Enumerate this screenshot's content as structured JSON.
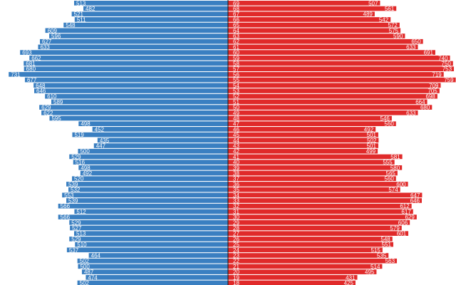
{
  "chart_data": {
    "type": "bar",
    "orientation": "horizontal",
    "layout": "population-pyramid",
    "categories": [
      "18",
      "19",
      "20",
      "21",
      "22",
      "23",
      "24",
      "25",
      "26",
      "27",
      "28",
      "29",
      "30",
      "31",
      "32",
      "33",
      "34",
      "35",
      "36",
      "37",
      "38",
      "39",
      "40",
      "41",
      "42",
      "43",
      "44",
      "45",
      "46",
      "47",
      "48",
      "49",
      "50",
      "51",
      "52",
      "53",
      "54",
      "55",
      "56",
      "57",
      "58",
      "59",
      "60",
      "61",
      "62",
      "63",
      "64",
      "65",
      "66",
      "67",
      "68",
      "69",
      "70",
      "71"
    ],
    "series": [
      {
        "side": "left",
        "color": "#3a7fc1",
        "values": [
          502,
          474,
          487,
          500,
          502,
          464,
          537,
          510,
          529,
          513,
          527,
          529,
          566,
          512,
          566,
          539,
          553,
          532,
          539,
          520,
          492,
          498,
          516,
          529,
          500,
          447,
          435,
          519,
          452,
          498,
          595,
          622,
          629,
          589,
          610,
          646,
          648,
          677,
          731,
          680,
          681,
          662,
          693,
          633,
          627,
          596,
          609,
          548,
          511,
          521,
          482,
          513,
          466,
          495
        ]
      },
      {
        "side": "right",
        "color": "#e02a2a",
        "values": [
          425,
          431,
          495,
          514,
          563,
          535,
          515,
          551,
          548,
          601,
          579,
          606,
          629,
          617,
          612,
          646,
          647,
          574,
          600,
          560,
          565,
          580,
          555,
          581,
          499,
          501,
          502,
          501,
          492,
          560,
          546,
          633,
          680,
          664,
          698,
          705,
          709,
          759,
          719,
          753,
          750,
          740,
          691,
          633,
          650,
          590,
          575,
          572,
          542,
          489,
          561,
          507,
          491,
          534
        ]
      }
    ],
    "xlim": [
      0,
      760
    ]
  }
}
